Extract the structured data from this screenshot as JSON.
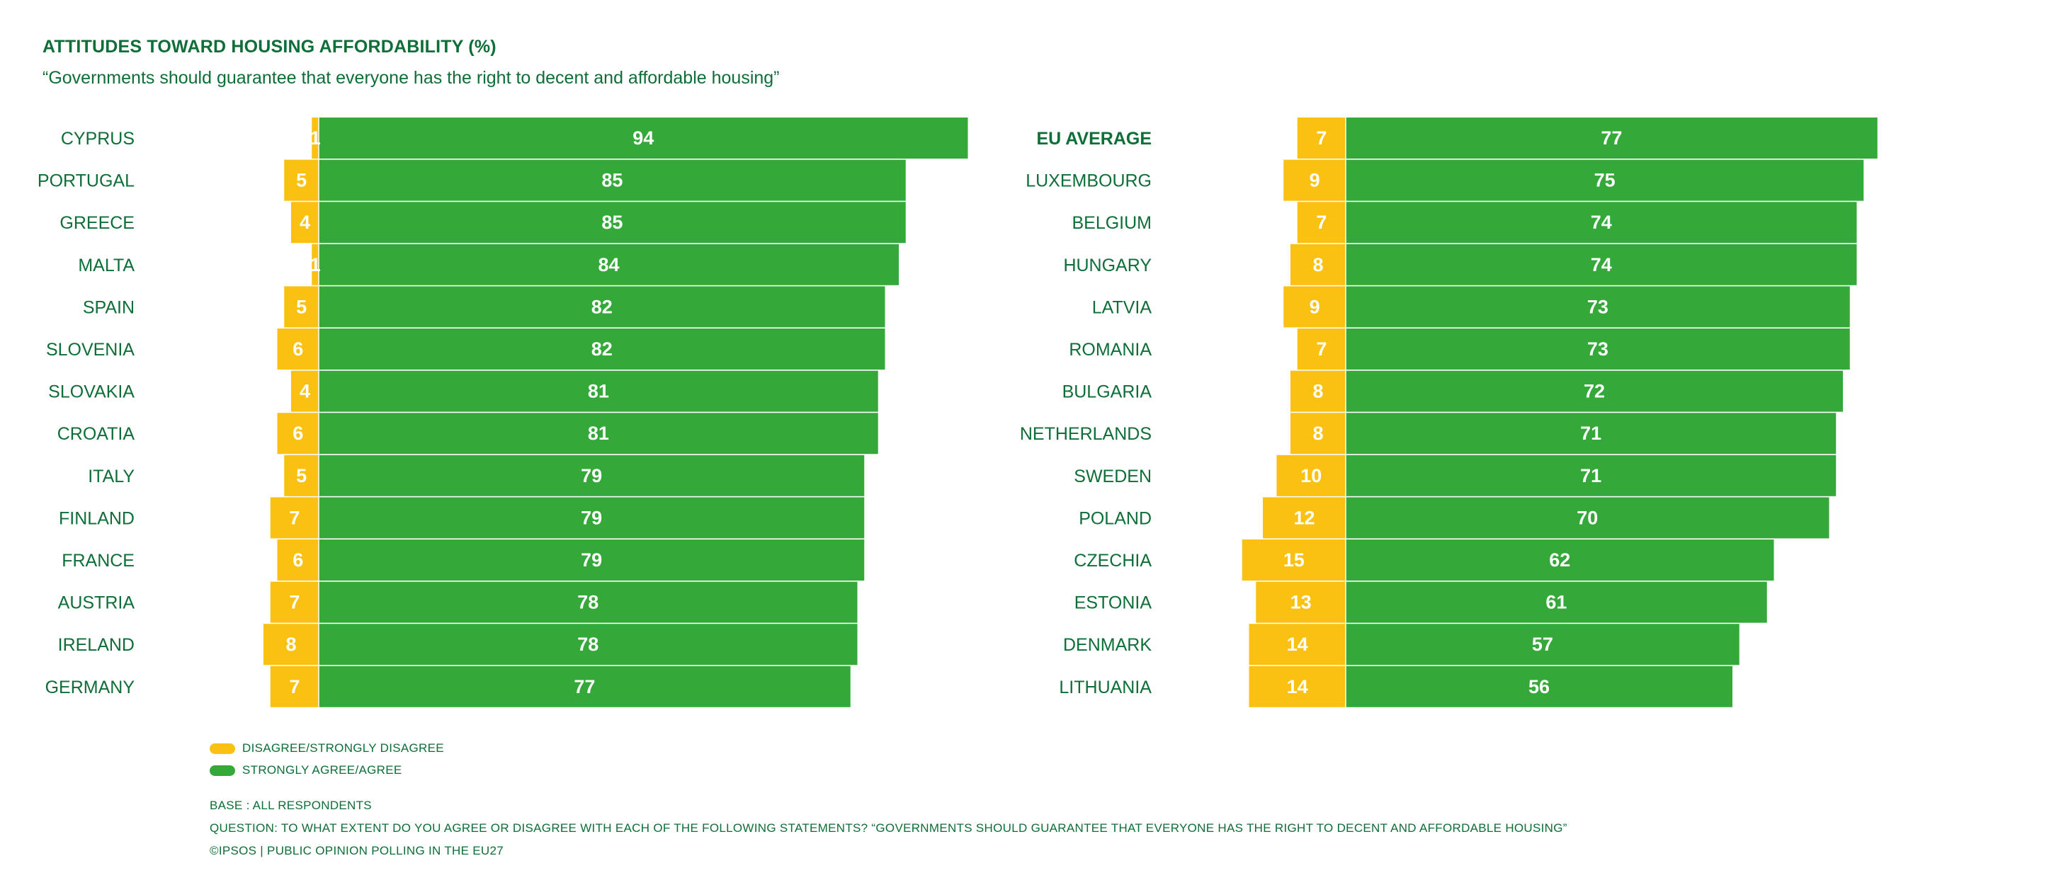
{
  "header": {
    "title": "ATTITUDES TOWARD HOUSING AFFORDABILITY (%)",
    "subtitle": "“Governments should guarantee that everyone has the right to decent and affordable housing”"
  },
  "colors": {
    "agree": "#34a93a",
    "disagree": "#fbc112",
    "text": "#0e6e37"
  },
  "chart_data": [
    {
      "type": "bar",
      "orientation": "horizontal-diverging",
      "categories": [
        "CYPRUS",
        "PORTUGAL",
        "GREECE",
        "MALTA",
        "SPAIN",
        "SLOVENIA",
        "SLOVAKIA",
        "CROATIA",
        "ITALY",
        "FINLAND",
        "FRANCE",
        "AUSTRIA",
        "IRELAND",
        "GERMANY"
      ],
      "series": [
        {
          "name": "DISAGREE/STRONGLY DISAGREE",
          "values": [
            1,
            5,
            4,
            1,
            5,
            6,
            4,
            6,
            5,
            7,
            6,
            7,
            8,
            7
          ]
        },
        {
          "name": "STRONGLY AGREE/AGREE",
          "values": [
            94,
            85,
            85,
            84,
            82,
            82,
            81,
            81,
            79,
            79,
            79,
            78,
            78,
            77
          ]
        }
      ]
    },
    {
      "type": "bar",
      "orientation": "horizontal-diverging",
      "categories": [
        "EU AVERAGE",
        "LUXEMBOURG",
        "BELGIUM",
        "HUNGARY",
        "LATVIA",
        "ROMANIA",
        "BULGARIA",
        "NETHERLANDS",
        "SWEDEN",
        "POLAND",
        "CZECHIA",
        "ESTONIA",
        "DENMARK",
        "LITHUANIA"
      ],
      "series": [
        {
          "name": "DISAGREE/STRONGLY DISAGREE",
          "values": [
            7,
            9,
            7,
            8,
            9,
            7,
            8,
            8,
            10,
            12,
            15,
            13,
            14,
            14
          ]
        },
        {
          "name": "STRONGLY AGREE/AGREE",
          "values": [
            77,
            75,
            74,
            74,
            73,
            73,
            72,
            71,
            71,
            70,
            62,
            61,
            57,
            56
          ]
        }
      ]
    }
  ],
  "legend": {
    "disagree_label": "DISAGREE/STRONGLY DISAGREE",
    "agree_label": "STRONGLY AGREE/AGREE"
  },
  "footnotes": {
    "base": "BASE : ALL RESPONDENTS",
    "question": "QUESTION: TO WHAT EXTENT DO YOU AGREE OR DISAGREE WITH EACH OF THE FOLLOWING STATEMENTS? “GOVERNMENTS SHOULD GUARANTEE THAT EVERYONE HAS THE RIGHT TO DECENT AND AFFORDABLE HOUSING”",
    "source": "©IPSOS | PUBLIC OPINION POLLING IN THE EU27"
  }
}
